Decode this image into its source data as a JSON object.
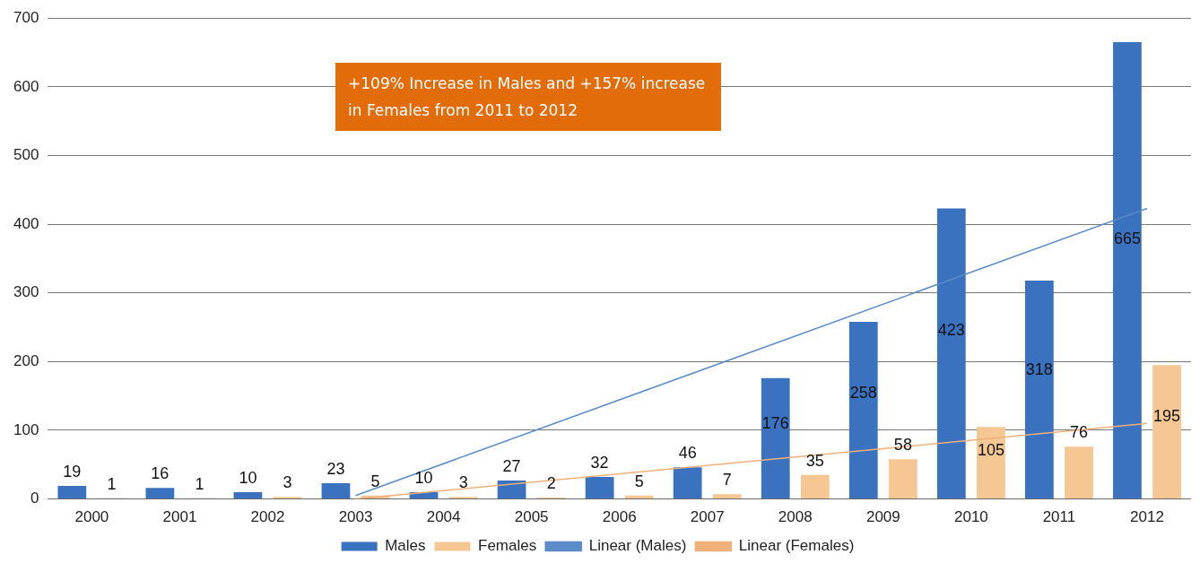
{
  "chart_data": {
    "type": "bar",
    "categories": [
      "2000",
      "2001",
      "2002",
      "2003",
      "2004",
      "2005",
      "2006",
      "2007",
      "2008",
      "2009",
      "2010",
      "2011",
      "2012"
    ],
    "series": [
      {
        "name": "Males",
        "color": "#3a72c0",
        "values": [
          19,
          16,
          10,
          23,
          10,
          27,
          32,
          46,
          176,
          258,
          423,
          318,
          665
        ],
        "value_labels": [
          "19",
          "16",
          "10",
          "23",
          "10",
          "27",
          "32",
          "46",
          "176",
          "258",
          "423",
          "318",
          "665"
        ]
      },
      {
        "name": "Females",
        "color": "#f5c792",
        "values": [
          1,
          1,
          3,
          5,
          3,
          2,
          5,
          7,
          35,
          58,
          105,
          76,
          195
        ],
        "value_labels": [
          "1",
          "1",
          "3",
          "5",
          "3",
          "2",
          "5",
          "7",
          "35",
          "58",
          "105",
          "76",
          "195"
        ]
      },
      {
        "name": "Linear (Males)",
        "type": "line",
        "color": "#5b8bc9",
        "values": [
          null,
          null,
          null,
          5,
          null,
          null,
          null,
          null,
          null,
          null,
          null,
          null,
          423
        ]
      },
      {
        "name": "Linear (Females)",
        "type": "line",
        "color": "#f0b07a",
        "values": [
          null,
          null,
          null,
          0,
          null,
          null,
          null,
          null,
          null,
          null,
          null,
          null,
          110
        ]
      }
    ],
    "ylim": [
      0,
      700
    ],
    "yticks": [
      0,
      100,
      200,
      300,
      400,
      500,
      600,
      700
    ],
    "grid": "y",
    "legend": "bottom",
    "marker": "none",
    "annotations": [
      "+109% Increase in Males and +157% increase in Females from 2011 to 2012"
    ]
  }
}
